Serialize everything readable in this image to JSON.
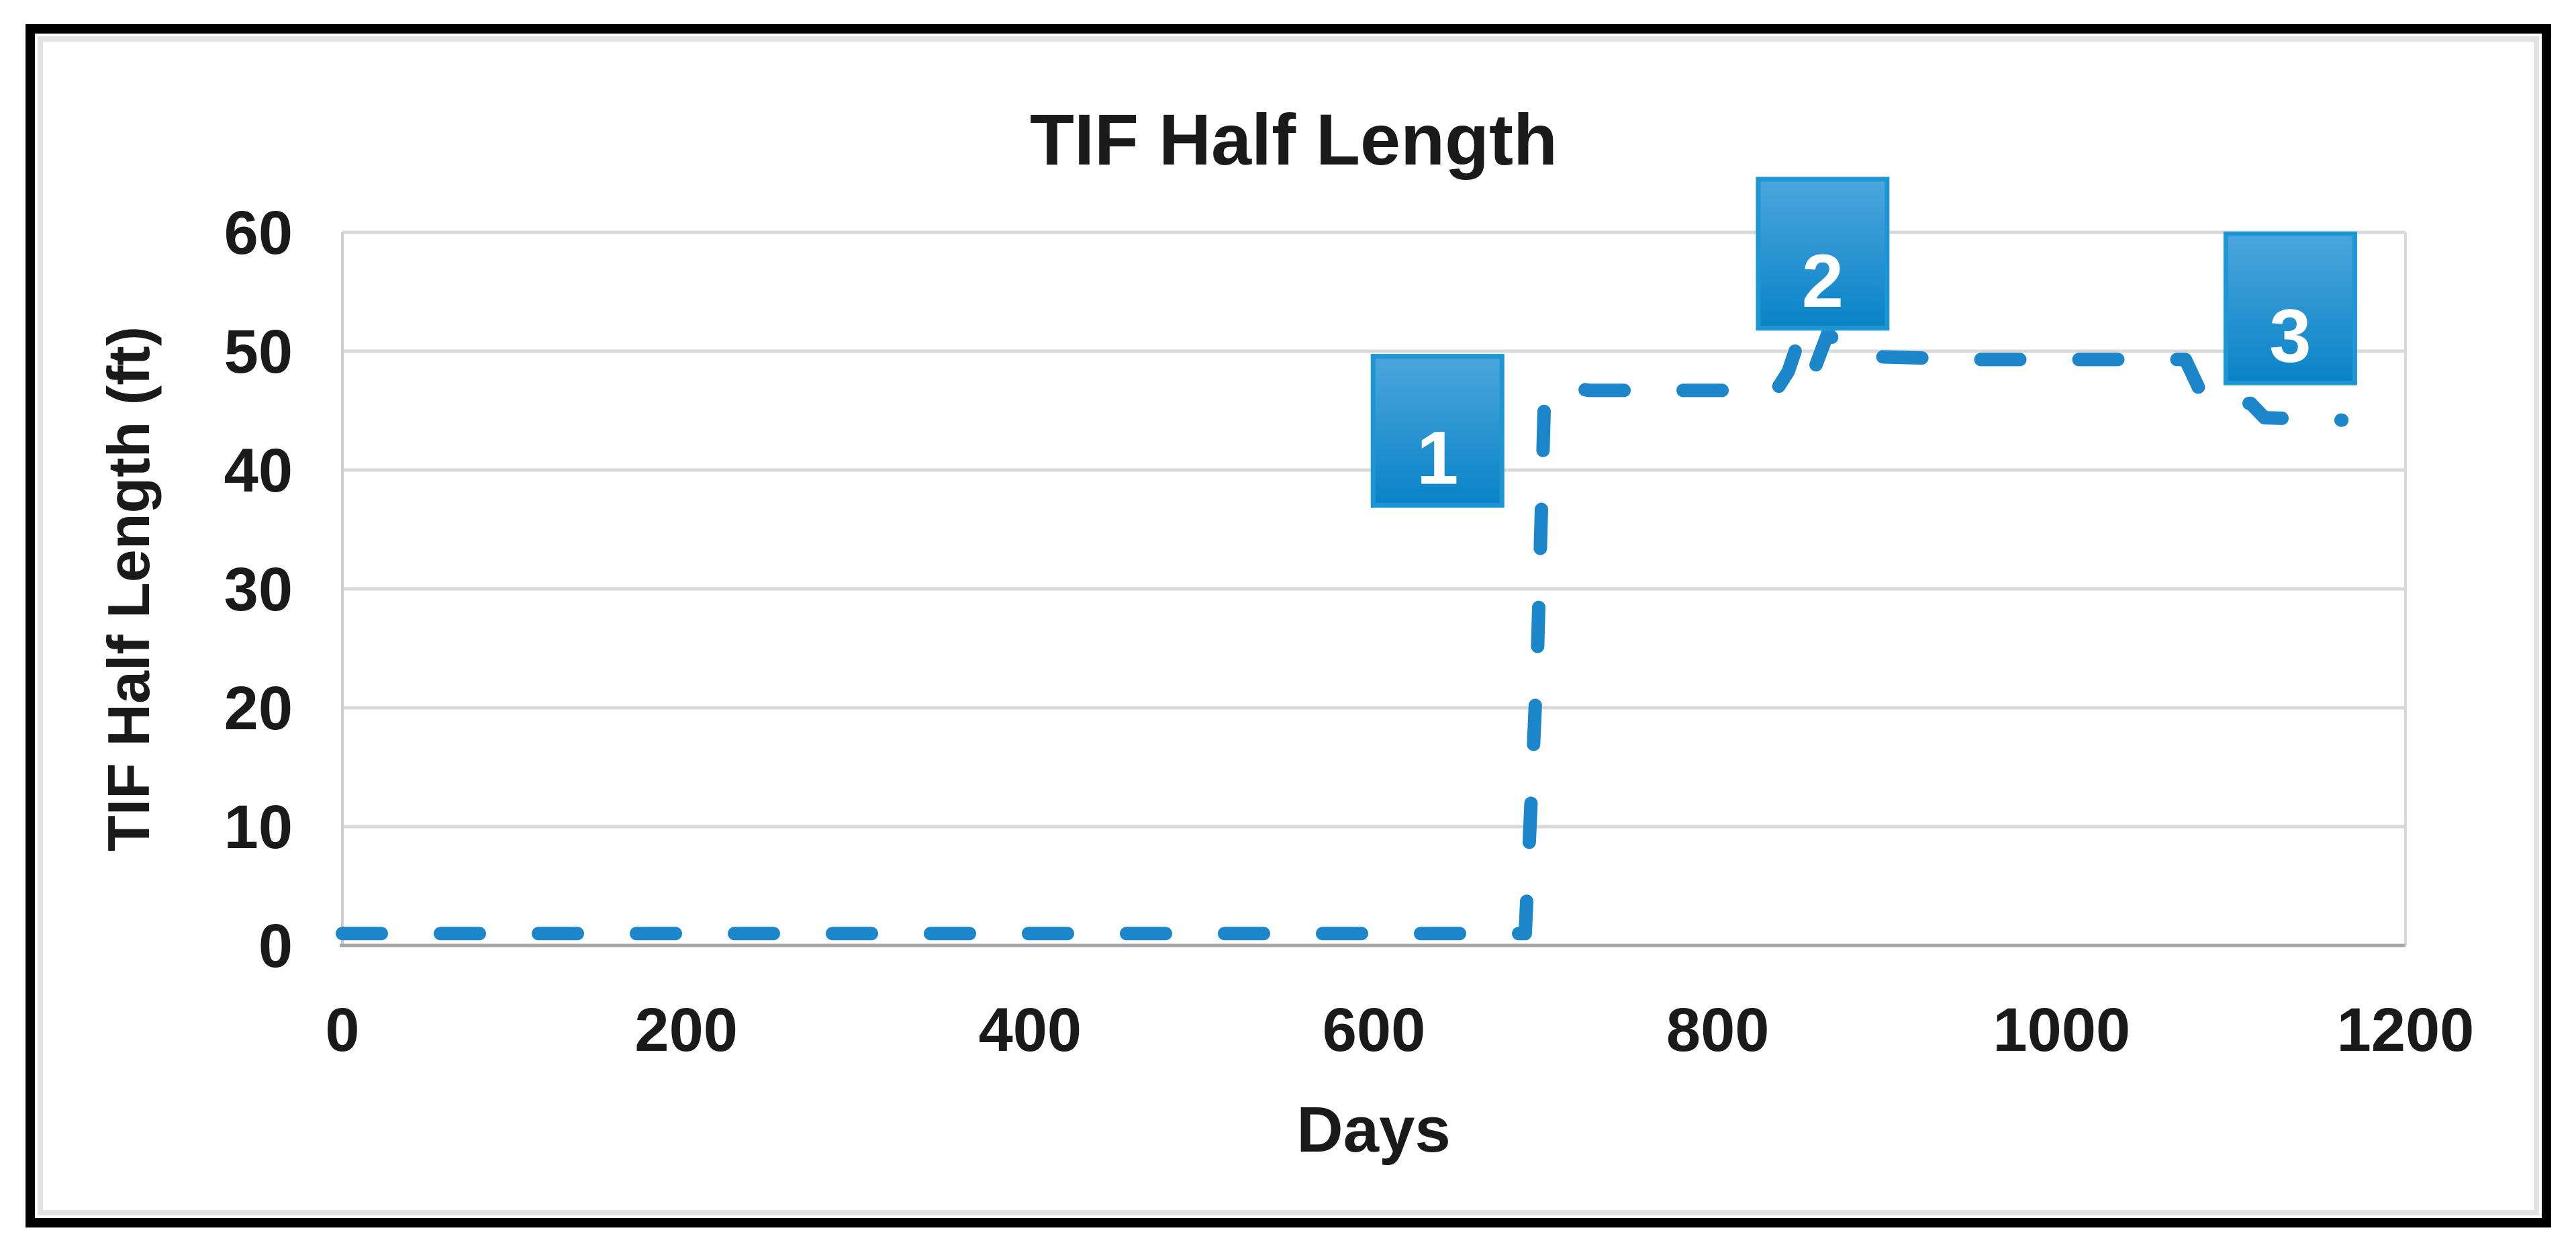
{
  "chart": {
    "title": "TIF Half Length",
    "x_axis_label": "Days",
    "y_axis_label": "TIF Half Length (ft)"
  },
  "chart_data": {
    "type": "line",
    "title": "TIF Half Length",
    "xlabel": "Days",
    "ylabel": "TIF Half Length (ft)",
    "xlim": [
      0,
      1200
    ],
    "ylim": [
      0,
      60
    ],
    "x_ticks": [
      0,
      200,
      400,
      600,
      800,
      1000,
      1200
    ],
    "y_ticks": [
      0,
      10,
      20,
      30,
      40,
      50,
      60
    ],
    "grid": "horizontal",
    "legend": "none",
    "line_style": "dashed",
    "line_color": "#1B87CA",
    "series": [
      {
        "name": "TIF half length (ft)",
        "points": [
          [
            0,
            1
          ],
          [
            688,
            1
          ],
          [
            695,
            24
          ],
          [
            699,
            45
          ],
          [
            706,
            47.2
          ],
          [
            725,
            46.7
          ],
          [
            834,
            46.7
          ],
          [
            841,
            48.3
          ],
          [
            848,
            51.3
          ],
          [
            856,
            48.4
          ],
          [
            864,
            51.5
          ],
          [
            877,
            49.6
          ],
          [
            950,
            49.3
          ],
          [
            1072,
            49.3
          ],
          [
            1083,
            45.9
          ],
          [
            1110,
            45.6
          ],
          [
            1118,
            44.4
          ],
          [
            1163,
            44.2
          ]
        ]
      }
    ],
    "annotations": [
      {
        "label": "1",
        "day": 637,
        "ft": 43.3
      },
      {
        "label": "2",
        "day": 861,
        "ft": 58.2
      },
      {
        "label": "3",
        "day": 1133,
        "ft": 53.6
      }
    ],
    "annotation_style": {
      "fill_top": "#4CA6DC",
      "fill_bottom": "#0983C7",
      "border": "#1E96D3",
      "text_color": "#FFFFFF"
    },
    "colors": {
      "gridline": "#D9D9D9",
      "axis_line": "#A6A6A6",
      "plot_left_edge": "#CCCCCC",
      "plot_right_edge": "#D9D9D9",
      "text": "#1A1A1A",
      "frame_border": "#010101",
      "frame_inner_line": "#E2E2E2",
      "background": "#FFFFFF"
    }
  }
}
